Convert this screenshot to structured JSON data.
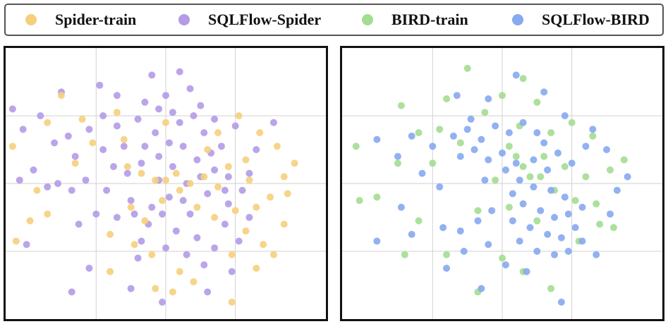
{
  "chart_data": [
    {
      "type": "scatter",
      "panel": "left",
      "title": "",
      "xlabel": "",
      "ylabel": "",
      "xlim": [
        -2.3,
        2.3
      ],
      "ylim": [
        -2.0,
        2.0
      ],
      "grid": true,
      "series": [
        {
          "name": "SQLFlow-Spider",
          "color": "#b39be6",
          "points": [
            [
              -0.3,
              1.2
            ],
            [
              -0.2,
              1.6
            ],
            [
              0.2,
              1.65
            ],
            [
              0.35,
              1.4
            ],
            [
              -0.1,
              1.1
            ],
            [
              0.0,
              1.3
            ],
            [
              0.1,
              1.05
            ],
            [
              -0.4,
              0.95
            ],
            [
              0.5,
              1.15
            ],
            [
              0.7,
              0.95
            ],
            [
              -0.9,
              1.0
            ],
            [
              -1.1,
              0.8
            ],
            [
              -0.7,
              0.85
            ],
            [
              -1.4,
              0.7
            ],
            [
              -1.6,
              0.6
            ],
            [
              -1.8,
              1.0
            ],
            [
              -2.2,
              1.1
            ],
            [
              -2.05,
              0.8
            ],
            [
              -1.3,
              0.4
            ],
            [
              -0.9,
              0.5
            ],
            [
              -0.6,
              0.55
            ],
            [
              -0.35,
              0.3
            ],
            [
              -0.1,
              0.4
            ],
            [
              0.25,
              0.55
            ],
            [
              0.45,
              0.35
            ],
            [
              0.7,
              0.2
            ],
            [
              0.9,
              0.1
            ],
            [
              1.1,
              -0.1
            ],
            [
              0.9,
              -0.3
            ],
            [
              0.6,
              -0.15
            ],
            [
              0.3,
              0.0
            ],
            [
              0.05,
              -0.2
            ],
            [
              -0.2,
              -0.35
            ],
            [
              -0.45,
              -0.45
            ],
            [
              -0.7,
              -0.5
            ],
            [
              -1.0,
              -0.45
            ],
            [
              -1.35,
              -0.1
            ],
            [
              -1.55,
              0.0
            ],
            [
              -1.9,
              0.2
            ],
            [
              -2.1,
              0.05
            ],
            [
              -0.5,
              -0.25
            ],
            [
              -0.25,
              -0.6
            ],
            [
              0.15,
              -0.7
            ],
            [
              0.45,
              -0.8
            ],
            [
              0.7,
              -0.95
            ],
            [
              0.55,
              -1.2
            ],
            [
              0.3,
              -1.05
            ],
            [
              0.0,
              -0.95
            ],
            [
              -0.35,
              -0.85
            ],
            [
              0.85,
              -0.6
            ],
            [
              1.05,
              -0.85
            ],
            [
              0.2,
              0.9
            ],
            [
              -0.55,
              0.15
            ],
            [
              -0.85,
              -0.1
            ],
            [
              0.1,
              0.25
            ],
            [
              0.55,
              0.75
            ],
            [
              -0.15,
              0.75
            ],
            [
              0.35,
              -0.45
            ],
            [
              0.8,
              0.55
            ],
            [
              1.3,
              0.5
            ],
            [
              1.55,
              0.9
            ],
            [
              -1.15,
              0.05
            ],
            [
              -0.4,
              -1.1
            ],
            [
              0.95,
              -1.3
            ],
            [
              -1.1,
              -1.25
            ],
            [
              -0.5,
              -1.55
            ],
            [
              -0.05,
              -1.75
            ],
            [
              0.6,
              -1.6
            ],
            [
              -1.35,
              -1.6
            ],
            [
              0.4,
              1.0
            ],
            [
              -0.7,
              1.3
            ],
            [
              -0.95,
              1.45
            ],
            [
              -1.5,
              1.35
            ],
            [
              1.0,
              0.85
            ],
            [
              -1.7,
              -0.05
            ],
            [
              -0.1,
              0.05
            ],
            [
              0.25,
              -0.25
            ],
            [
              0.65,
              0.45
            ],
            [
              -0.3,
              0.55
            ],
            [
              0.85,
              -0.1
            ],
            [
              -2.0,
              -0.9
            ],
            [
              1.2,
              -0.5
            ],
            [
              1.2,
              0.15
            ],
            [
              -0.75,
              0.25
            ],
            [
              0.05,
              0.6
            ],
            [
              -1.25,
              -0.6
            ],
            [
              0.5,
              0.1
            ],
            [
              -0.05,
              -0.45
            ]
          ]
        },
        {
          "name": "Spider-train",
          "color": "#f6cf7c",
          "points": [
            [
              -1.5,
              1.3
            ],
            [
              -1.7,
              0.9
            ],
            [
              -2.2,
              0.55
            ],
            [
              -1.85,
              -0.1
            ],
            [
              -1.95,
              -0.55
            ],
            [
              -1.7,
              -0.45
            ],
            [
              -2.15,
              -0.85
            ],
            [
              -1.2,
              0.95
            ],
            [
              -1.05,
              0.6
            ],
            [
              -1.3,
              0.3
            ],
            [
              -0.7,
              1.05
            ],
            [
              -0.6,
              0.65
            ],
            [
              0.0,
              0.05
            ],
            [
              0.15,
              0.15
            ],
            [
              0.35,
              0.0
            ],
            [
              0.55,
              0.1
            ],
            [
              0.75,
              -0.05
            ],
            [
              -0.15,
              0.05
            ],
            [
              -0.35,
              0.15
            ],
            [
              0.45,
              -0.35
            ],
            [
              0.9,
              0.25
            ],
            [
              1.15,
              0.35
            ],
            [
              1.35,
              0.75
            ],
            [
              1.6,
              0.55
            ],
            [
              1.7,
              0.1
            ],
            [
              1.85,
              0.3
            ],
            [
              1.5,
              -0.2
            ],
            [
              1.3,
              -0.35
            ],
            [
              1.15,
              -0.7
            ],
            [
              1.4,
              -0.9
            ],
            [
              1.7,
              -0.6
            ],
            [
              1.55,
              -1.05
            ],
            [
              1.3,
              -1.25
            ],
            [
              0.95,
              -1.05
            ],
            [
              0.7,
              -0.5
            ],
            [
              -0.8,
              -0.75
            ],
            [
              -0.5,
              -0.35
            ],
            [
              -0.3,
              -0.55
            ],
            [
              -0.05,
              -0.25
            ],
            [
              0.2,
              -0.1
            ],
            [
              0.6,
              0.5
            ],
            [
              1.05,
              1.0
            ],
            [
              1.2,
              0.05
            ],
            [
              0.2,
              -1.3
            ],
            [
              0.1,
              -1.6
            ],
            [
              0.4,
              -1.45
            ],
            [
              0.95,
              -1.75
            ],
            [
              -0.15,
              -1.55
            ],
            [
              -0.8,
              -1.3
            ],
            [
              -0.2,
              -1.05
            ],
            [
              0.75,
              0.75
            ],
            [
              1.75,
              -0.15
            ],
            [
              0.0,
              0.9
            ],
            [
              -0.45,
              -0.9
            ],
            [
              -0.55,
              0.25
            ],
            [
              1.0,
              -0.4
            ]
          ]
        }
      ]
    },
    {
      "type": "scatter",
      "panel": "right",
      "title": "",
      "xlabel": "",
      "ylabel": "",
      "xlim": [
        -2.3,
        2.3
      ],
      "ylim": [
        -2.0,
        2.0
      ],
      "grid": true,
      "series": [
        {
          "name": "BIRD-train",
          "color": "#a3dd91",
          "points": [
            [
              -2.1,
              0.55
            ],
            [
              -1.5,
              0.3
            ],
            [
              -1.2,
              0.75
            ],
            [
              -0.8,
              1.25
            ],
            [
              -0.5,
              1.7
            ],
            [
              0.3,
              1.55
            ],
            [
              0.0,
              1.3
            ],
            [
              0.5,
              1.2
            ],
            [
              -1.8,
              -0.2
            ],
            [
              -1.2,
              -0.55
            ],
            [
              -1.4,
              -1.05
            ],
            [
              -0.8,
              -1.05
            ],
            [
              -0.35,
              -0.4
            ],
            [
              0.1,
              -0.35
            ],
            [
              0.5,
              -0.55
            ],
            [
              0.2,
              0.4
            ],
            [
              0.1,
              0.55
            ],
            [
              0.3,
              0.25
            ],
            [
              0.55,
              0.1
            ],
            [
              0.75,
              -0.1
            ],
            [
              1.05,
              -0.25
            ],
            [
              1.2,
              0.1
            ],
            [
              1.35,
              -0.3
            ],
            [
              1.55,
              0.2
            ],
            [
              1.75,
              0.35
            ],
            [
              1.3,
              0.7
            ],
            [
              1.0,
              0.9
            ],
            [
              0.7,
              0.75
            ],
            [
              1.4,
              -0.6
            ],
            [
              1.6,
              -0.65
            ],
            [
              -1.45,
              1.15
            ],
            [
              -2.05,
              -0.25
            ],
            [
              -0.9,
              0.8
            ],
            [
              0.0,
              -1.1
            ],
            [
              0.3,
              -1.3
            ],
            [
              -0.35,
              -1.6
            ],
            [
              0.7,
              -1.55
            ],
            [
              0.4,
              0.1
            ],
            [
              -0.1,
              0.05
            ],
            [
              0.6,
              0.4
            ],
            [
              0.9,
              0.25
            ],
            [
              -0.6,
              0.6
            ],
            [
              -1.0,
              0.3
            ],
            [
              1.1,
              -0.85
            ],
            [
              -0.25,
              1.05
            ],
            [
              0.25,
              0.85
            ]
          ]
        },
        {
          "name": "SQLFlow-BIRD",
          "color": "#86a9f0",
          "points": [
            [
              -0.7,
              0.7
            ],
            [
              -0.5,
              0.8
            ],
            [
              -0.3,
              0.65
            ],
            [
              -0.1,
              0.85
            ],
            [
              0.1,
              0.75
            ],
            [
              0.3,
              0.9
            ],
            [
              0.5,
              0.75
            ],
            [
              -0.6,
              0.4
            ],
            [
              -0.4,
              0.5
            ],
            [
              -0.2,
              0.35
            ],
            [
              0.0,
              0.45
            ],
            [
              0.2,
              0.3
            ],
            [
              0.45,
              0.35
            ],
            [
              0.65,
              0.2
            ],
            [
              0.8,
              0.45
            ],
            [
              1.0,
              0.3
            ],
            [
              0.25,
              0.05
            ],
            [
              0.45,
              -0.05
            ],
            [
              0.7,
              -0.1
            ],
            [
              0.9,
              -0.2
            ],
            [
              0.3,
              -0.3
            ],
            [
              0.55,
              -0.4
            ],
            [
              0.75,
              -0.5
            ],
            [
              0.95,
              -0.45
            ],
            [
              1.15,
              -0.35
            ],
            [
              0.4,
              -0.65
            ],
            [
              0.65,
              -0.75
            ],
            [
              0.85,
              -0.8
            ],
            [
              1.05,
              -0.65
            ],
            [
              0.25,
              -0.85
            ],
            [
              0.5,
              -1.0
            ],
            [
              0.75,
              -1.05
            ],
            [
              0.95,
              -1.0
            ],
            [
              1.15,
              -0.85
            ],
            [
              0.15,
              -0.55
            ],
            [
              -0.15,
              -0.4
            ],
            [
              -0.35,
              -0.55
            ],
            [
              -0.6,
              -0.7
            ],
            [
              -0.85,
              -0.65
            ],
            [
              -0.55,
              -1.0
            ],
            [
              -0.2,
              -0.9
            ],
            [
              0.05,
              -1.2
            ],
            [
              0.35,
              -1.3
            ],
            [
              -1.0,
              0.55
            ],
            [
              -1.3,
              0.7
            ],
            [
              -1.5,
              0.4
            ],
            [
              -1.8,
              0.65
            ],
            [
              -1.15,
              0.15
            ],
            [
              -0.9,
              -0.05
            ],
            [
              0.6,
              1.35
            ],
            [
              0.2,
              1.6
            ],
            [
              -0.2,
              1.25
            ],
            [
              -0.65,
              1.3
            ],
            [
              0.9,
              1.0
            ],
            [
              1.3,
              0.8
            ],
            [
              1.5,
              0.5
            ],
            [
              1.65,
              -0.1
            ],
            [
              1.8,
              0.1
            ],
            [
              1.55,
              -0.45
            ],
            [
              1.35,
              -1.05
            ],
            [
              -1.8,
              -0.85
            ],
            [
              -1.3,
              -0.75
            ],
            [
              -0.8,
              -1.25
            ],
            [
              -0.3,
              -1.55
            ],
            [
              0.85,
              -1.75
            ],
            [
              -1.45,
              -0.35
            ],
            [
              0.05,
              0.2
            ],
            [
              -0.25,
              0.05
            ],
            [
              1.2,
              0.55
            ],
            [
              0.6,
              0.6
            ],
            [
              -0.45,
              0.95
            ],
            [
              0.15,
              -0.15
            ]
          ]
        }
      ]
    }
  ],
  "legend": {
    "items": [
      {
        "label": "Spider-train",
        "color": "#f6cf7c"
      },
      {
        "label": "SQLFlow-Spider",
        "color": "#b39be6"
      },
      {
        "label": "BIRD-train",
        "color": "#a3dd91"
      },
      {
        "label": "SQLFlow-BIRD",
        "color": "#86a9f0"
      }
    ]
  },
  "colors": {
    "frame": "#111111",
    "grid": "#d2d2d2",
    "legend_border": "#555555"
  }
}
